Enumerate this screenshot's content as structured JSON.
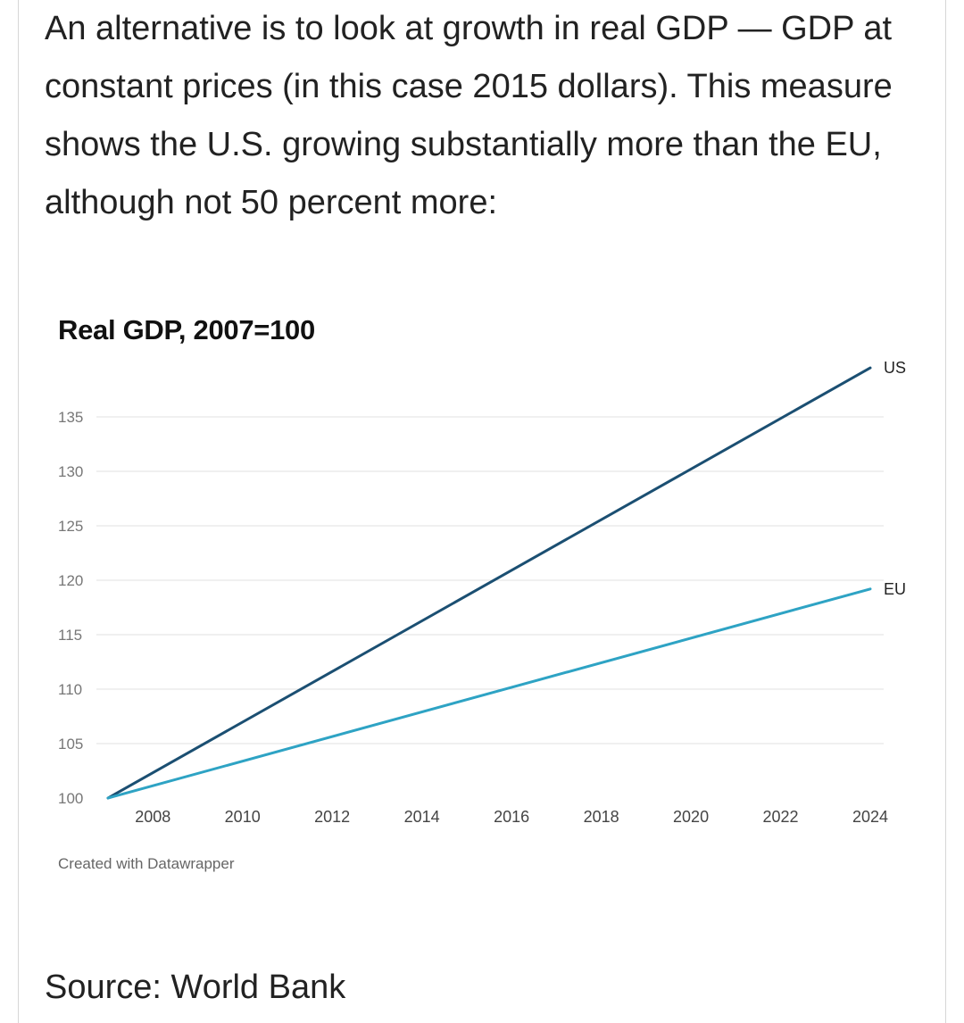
{
  "article": {
    "intro_text": "An alternative is to look at growth in real GDP — GDP at constant prices (in this case 2015 dollars). This measure shows the U.S. growing substantially more than the EU, although not 50 percent more:",
    "source": "Source: World Bank"
  },
  "chart_data": {
    "type": "line",
    "title": "Real GDP, 2007=100",
    "xlabel": "",
    "ylabel": "",
    "x": [
      2007,
      2024
    ],
    "x_ticks": [
      "2008",
      "2010",
      "2012",
      "2014",
      "2016",
      "2018",
      "2020",
      "2022",
      "2024"
    ],
    "y_ticks": [
      "100",
      "105",
      "110",
      "115",
      "120",
      "125",
      "130",
      "135"
    ],
    "ylim": [
      100,
      138
    ],
    "xlim": [
      2007,
      2024
    ],
    "series": [
      {
        "name": "US",
        "color": "#1b4f72",
        "values": [
          100,
          139.5
        ]
      },
      {
        "name": "EU",
        "color": "#2ea3c4",
        "values": [
          100,
          119.2
        ]
      }
    ],
    "grid": true,
    "legend": "direct labels at line ends",
    "credit": "Created with Datawrapper"
  }
}
